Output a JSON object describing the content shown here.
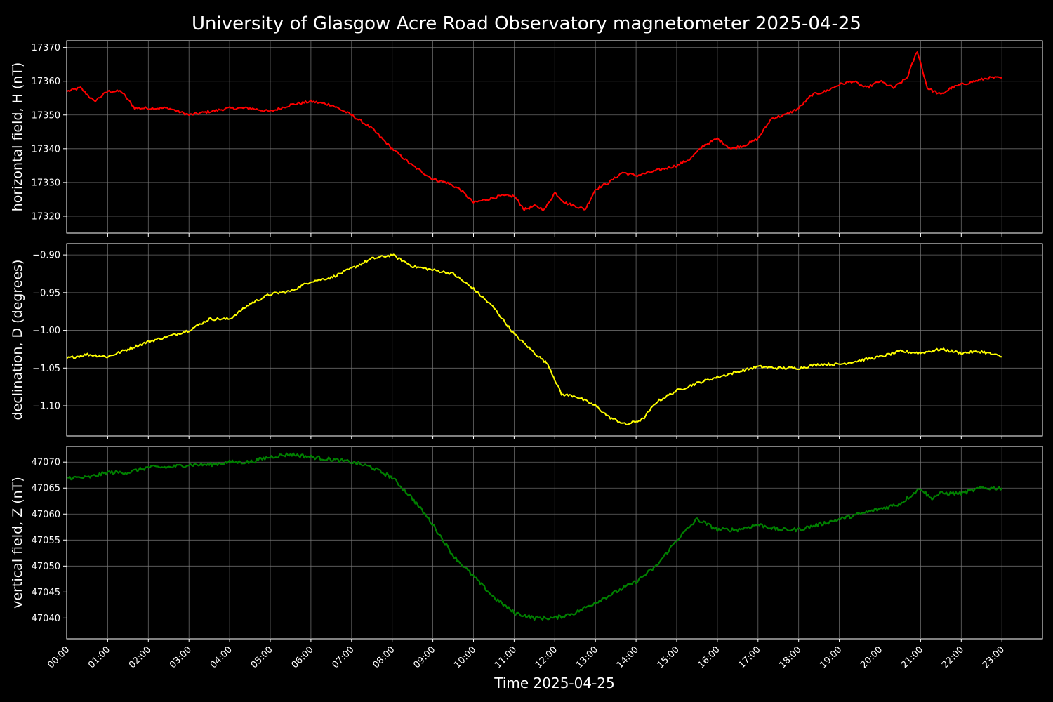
{
  "chart_data": {
    "type": "line",
    "title": "University of Glasgow Acre Road Observatory magnetometer 2025-04-25",
    "xlabel": "Time 2025-04-25",
    "x_tick_labels": [
      "00:00",
      "01:00",
      "02:00",
      "03:00",
      "04:00",
      "05:00",
      "06:00",
      "07:00",
      "08:00",
      "09:00",
      "10:00",
      "11:00",
      "12:00",
      "13:00",
      "14:00",
      "15:00",
      "16:00",
      "17:00",
      "18:00",
      "19:00",
      "20:00",
      "21:00",
      "22:00",
      "23:00"
    ],
    "xlim": [
      "00:00",
      "23:59"
    ],
    "grid": true,
    "panels": [
      {
        "ylabel": "horizontal field, H (nT)",
        "color": "#ff0000",
        "ylim": [
          17315,
          17372
        ],
        "y_ticks": [
          17320,
          17330,
          17340,
          17350,
          17360,
          17370
        ],
        "y_tick_labels": [
          "17320",
          "17330",
          "17340",
          "17350",
          "17360",
          "17370"
        ],
        "x": [
          "00:00",
          "00:20",
          "00:40",
          "01:00",
          "01:20",
          "01:40",
          "02:00",
          "02:30",
          "03:00",
          "03:30",
          "04:00",
          "04:30",
          "05:00",
          "05:30",
          "06:00",
          "06:30",
          "07:00",
          "07:30",
          "08:00",
          "08:30",
          "09:00",
          "09:20",
          "09:40",
          "10:00",
          "10:20",
          "10:40",
          "11:00",
          "11:15",
          "11:30",
          "11:45",
          "12:00",
          "12:15",
          "12:30",
          "12:45",
          "13:00",
          "13:20",
          "13:40",
          "14:00",
          "14:20",
          "14:40",
          "15:00",
          "15:20",
          "15:40",
          "16:00",
          "16:20",
          "16:40",
          "17:00",
          "17:20",
          "17:40",
          "18:00",
          "18:20",
          "18:40",
          "19:00",
          "19:20",
          "19:40",
          "20:00",
          "20:20",
          "20:40",
          "20:55",
          "21:10",
          "21:30",
          "21:45",
          "22:00",
          "22:20",
          "22:40",
          "23:00"
        ],
        "values": [
          17357,
          17358,
          17354,
          17357,
          17357,
          17352,
          17352,
          17352,
          17350,
          17351,
          17352,
          17352,
          17351,
          17353,
          17354,
          17353,
          17350,
          17346,
          17340,
          17335,
          17331,
          17330,
          17328,
          17324,
          17325,
          17326,
          17326,
          17322,
          17323,
          17322,
          17327,
          17324,
          17323,
          17322,
          17328,
          17330,
          17333,
          17332,
          17333,
          17334,
          17335,
          17337,
          17341,
          17343,
          17340,
          17341,
          17343,
          17349,
          17350,
          17352,
          17356,
          17357,
          17359,
          17360,
          17358,
          17360,
          17358,
          17361,
          17369,
          17358,
          17356,
          17358,
          17359,
          17360,
          17361,
          17361
        ]
      },
      {
        "ylabel": "declination, D (degrees)",
        "color": "#ffff00",
        "ylim": [
          -1.14,
          -0.885
        ],
        "y_ticks": [
          -1.1,
          -1.05,
          -1.0,
          -0.95,
          -0.9
        ],
        "y_tick_labels": [
          "−1.10",
          "−1.05",
          "−1.00",
          "−0.95",
          "−0.90"
        ],
        "x": [
          "00:00",
          "00:30",
          "01:00",
          "01:30",
          "02:00",
          "02:30",
          "03:00",
          "03:30",
          "04:00",
          "04:30",
          "05:00",
          "05:30",
          "06:00",
          "06:30",
          "07:00",
          "07:30",
          "08:00",
          "08:30",
          "09:00",
          "09:30",
          "10:00",
          "10:30",
          "11:00",
          "11:30",
          "11:50",
          "12:10",
          "12:30",
          "13:00",
          "13:20",
          "13:45",
          "14:10",
          "14:30",
          "15:00",
          "15:30",
          "16:00",
          "16:30",
          "17:00",
          "17:30",
          "18:00",
          "18:30",
          "19:00",
          "19:30",
          "20:00",
          "20:30",
          "21:00",
          "21:30",
          "22:00",
          "22:30",
          "23:00"
        ],
        "values": [
          -1.037,
          -1.032,
          -1.035,
          -1.025,
          -1.015,
          -1.008,
          -1.0,
          -0.985,
          -0.985,
          -0.965,
          -0.952,
          -0.948,
          -0.935,
          -0.93,
          -0.918,
          -0.905,
          -0.9,
          -0.915,
          -0.92,
          -0.925,
          -0.945,
          -0.97,
          -1.005,
          -1.03,
          -1.045,
          -1.085,
          -1.087,
          -1.1,
          -1.115,
          -1.125,
          -1.118,
          -1.095,
          -1.08,
          -1.07,
          -1.062,
          -1.055,
          -1.048,
          -1.05,
          -1.05,
          -1.045,
          -1.045,
          -1.04,
          -1.035,
          -1.028,
          -1.03,
          -1.025,
          -1.03,
          -1.028,
          -1.035
        ]
      },
      {
        "ylabel": "vertical field, Z (nT)",
        "color": "#008000",
        "ylim": [
          47036,
          47073
        ],
        "y_ticks": [
          47040,
          47045,
          47050,
          47055,
          47060,
          47065,
          47070
        ],
        "y_tick_labels": [
          "47040",
          "47045",
          "47050",
          "47055",
          "47060",
          "47065",
          "47070"
        ],
        "x": [
          "00:00",
          "00:30",
          "01:00",
          "01:30",
          "02:00",
          "02:30",
          "03:00",
          "03:30",
          "04:00",
          "04:30",
          "05:00",
          "05:30",
          "06:00",
          "06:30",
          "07:00",
          "07:30",
          "08:00",
          "08:30",
          "09:00",
          "09:30",
          "10:00",
          "10:30",
          "11:00",
          "11:30",
          "12:00",
          "12:30",
          "13:00",
          "13:30",
          "14:00",
          "14:30",
          "15:00",
          "15:30",
          "16:00",
          "16:30",
          "17:00",
          "17:30",
          "18:00",
          "18:30",
          "19:00",
          "19:30",
          "20:00",
          "20:30",
          "21:00",
          "21:15",
          "21:30",
          "22:00",
          "22:30",
          "23:00"
        ],
        "values": [
          47067,
          47067,
          47068,
          47068,
          47069,
          47069,
          47069.5,
          47069.5,
          47070,
          47070,
          47071,
          47071.5,
          47071,
          47070.5,
          47070,
          47069,
          47067,
          47063,
          47058,
          47052,
          47048,
          47044,
          47041,
          47040,
          47040,
          47041,
          47043,
          47045,
          47047,
          47050,
          47055,
          47059,
          47057,
          47057,
          47058,
          47057,
          47057,
          47058,
          47059,
          47060,
          47061,
          47062,
          47065,
          47063,
          47064,
          47064,
          47065,
          47065
        ]
      }
    ]
  }
}
